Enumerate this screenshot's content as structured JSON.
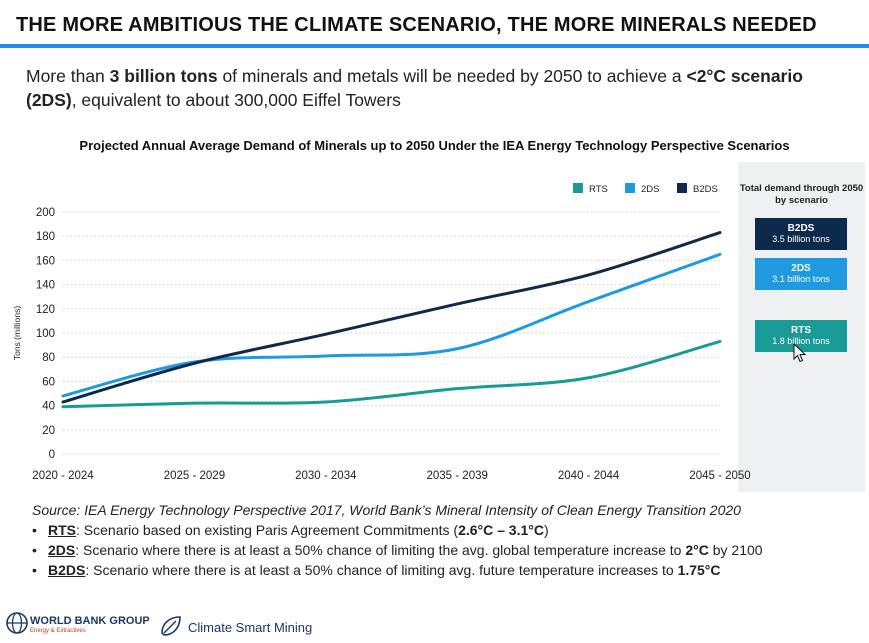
{
  "page": {
    "title": "THE MORE AMBITIOUS THE CLIMATE SCENARIO, THE MORE MINERALS NEEDED",
    "lead": {
      "p1": "More than ",
      "b1": "3 billion tons",
      "p2": " of minerals and metals will be needed by 2050 to achieve a ",
      "b2": "<2°C scenario (2DS)",
      "p3": ", equivalent to about 300,000 Eiffel Towers"
    },
    "source": "Source: IEA Energy Technology Perspective 2017, World Bank’s Mineral Intensity of Clean Energy Transition 2020",
    "notes": [
      {
        "key": "RTS",
        "text": ": Scenario based on existing Paris Agreement Commitments (",
        "bold": "2.6°C – 3.1°C",
        "tail": ")"
      },
      {
        "key": "2DS",
        "text": ": Scenario where there is at least a 50% chance of limiting the avg. global temperature increase to ",
        "bold": "2°C",
        "tail": " by 2100"
      },
      {
        "key": "B2DS",
        "text": ": Scenario where there is at least a 50% chance of limiting avg. future temperature increases to ",
        "bold": "1.75°C",
        "tail": ""
      }
    ]
  },
  "side_panel": {
    "heading": "Total demand through 2050 by scenario",
    "items": [
      {
        "name": "B2DS",
        "value": "3.5 billion tons",
        "color": "#0d2a4c"
      },
      {
        "name": "2DS",
        "value": "3.1 billion tons",
        "color": "#1f9ae0"
      },
      {
        "name": "RTS",
        "value": "1.8 billion tons",
        "color": "#1a9a96"
      }
    ]
  },
  "footer": {
    "org": "WORLD BANK GROUP",
    "org_sub": "Energy & Extractives",
    "program": "Climate Smart Mining"
  },
  "chart_data": {
    "type": "line",
    "title": "Projected Annual Average Demand of Minerals up to 2050 Under the IEA Energy Technology Perspective Scenarios",
    "ylabel": "Tons (millions)",
    "xlabel": "",
    "categories": [
      "2020 - 2024",
      "2025 - 2029",
      "2030 - 2034",
      "2035 - 2039",
      "2040 - 2044",
      "2045 - 2050"
    ],
    "ylim": [
      0,
      200
    ],
    "yticks": [
      0,
      20,
      40,
      60,
      80,
      100,
      120,
      140,
      160,
      180,
      200
    ],
    "grid": "horizontal dotted",
    "legend": "top-right",
    "series": [
      {
        "name": "RTS",
        "color": "#1a9a96",
        "values": [
          39,
          42,
          43,
          54,
          63,
          93
        ]
      },
      {
        "name": "2DS",
        "color": "#1f9ae0",
        "values": [
          48,
          76,
          81,
          87,
          126,
          165
        ]
      },
      {
        "name": "B2DS",
        "color": "#0d2a4c",
        "values": [
          43,
          75,
          99,
          124,
          148,
          183
        ]
      }
    ]
  }
}
